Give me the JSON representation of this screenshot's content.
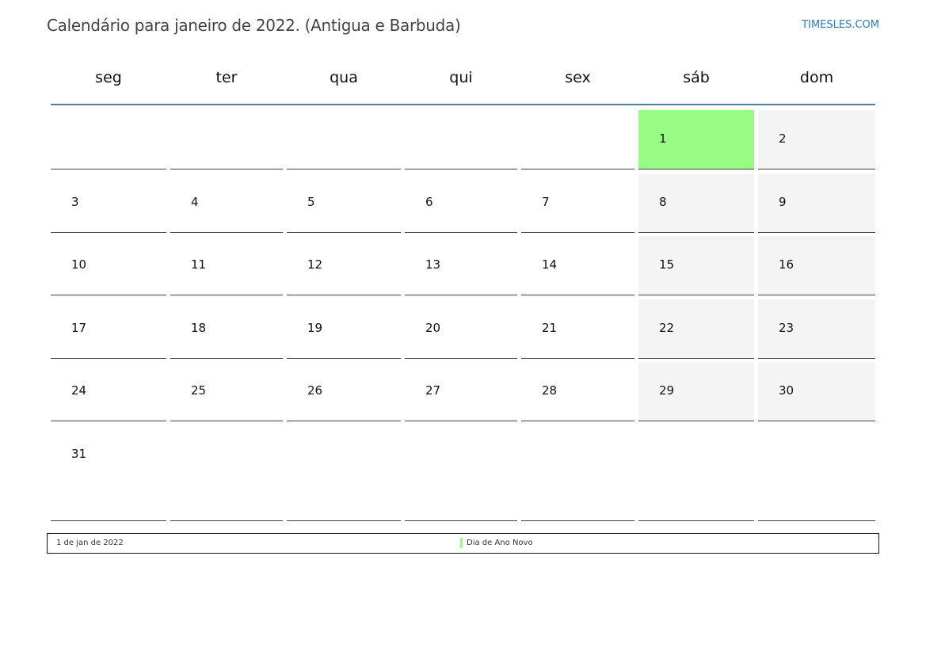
{
  "header": {
    "title": "Calendário para janeiro de 2022. (Antigua e Barbuda)",
    "brand": "TIMESLES.COM"
  },
  "colors": {
    "holiday": "#98fb84",
    "weekend": "#f4f4f4",
    "header_rule": "#5a7aa0",
    "brand": "#2a7bbf"
  },
  "weekdays": [
    "seg",
    "ter",
    "qua",
    "qui",
    "sex",
    "sáb",
    "dom"
  ],
  "weeks": [
    [
      "",
      "",
      "",
      "",
      "",
      "1",
      "2"
    ],
    [
      "3",
      "4",
      "5",
      "6",
      "7",
      "8",
      "9"
    ],
    [
      "10",
      "11",
      "12",
      "13",
      "14",
      "15",
      "16"
    ],
    [
      "17",
      "18",
      "19",
      "20",
      "21",
      "22",
      "23"
    ],
    [
      "24",
      "25",
      "26",
      "27",
      "28",
      "29",
      "30"
    ],
    [
      "31",
      "",
      "",
      "",
      "",
      "",
      ""
    ]
  ],
  "holiday_days": [
    "1"
  ],
  "legend": {
    "date": "1 de jan de 2022",
    "name": "Dia de Ano Novo"
  }
}
